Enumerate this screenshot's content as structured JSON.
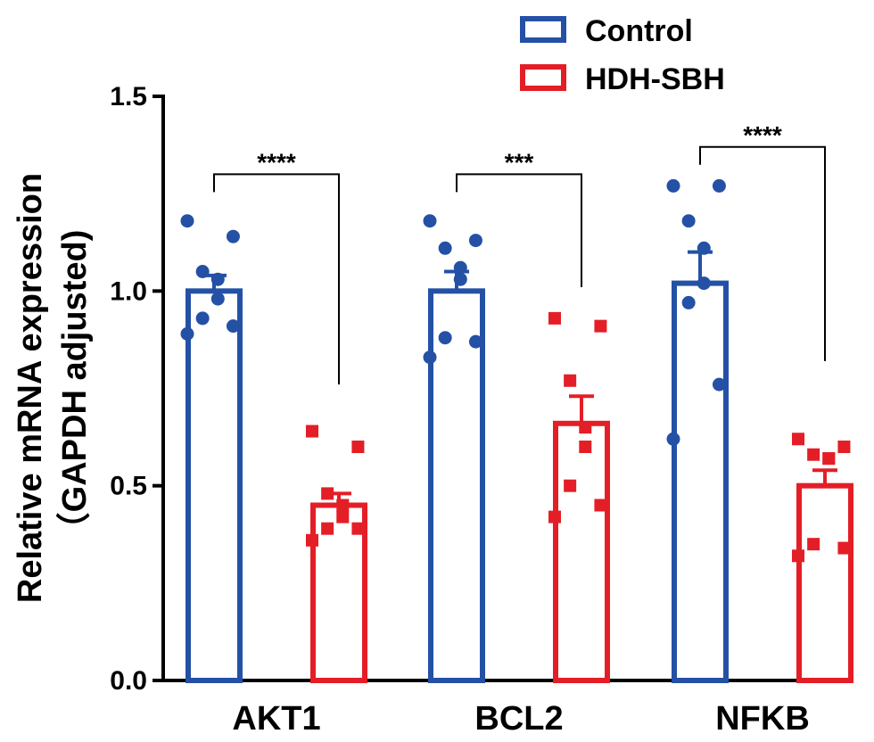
{
  "chart_data": {
    "type": "bar",
    "title": "",
    "xlabel": "",
    "ylabel": "Relative mRNA expression",
    "ylabel_line2": "（GAPDH adjusted)",
    "ylim": [
      0,
      1.5
    ],
    "yticks": [
      "0.0",
      "0.5",
      "1.0",
      "1.5"
    ],
    "ytick_values": [
      0,
      0.5,
      1.0,
      1.5
    ],
    "categories": [
      "AKT1",
      "BCL2",
      "NFKB"
    ],
    "legend_position": "top-right",
    "colors": {
      "Control": "#2451a6",
      "HDH-SBH": "#e41e26"
    },
    "series": [
      {
        "name": "Control",
        "marker": "circle",
        "values": [
          1.0,
          1.0,
          1.02
        ],
        "sem": [
          0.04,
          0.05,
          0.08
        ],
        "points": [
          [
            1.18,
            1.14,
            1.05,
            1.03,
            0.98,
            0.93,
            0.91,
            0.89
          ],
          [
            1.18,
            1.13,
            1.11,
            1.06,
            1.03,
            0.88,
            0.87,
            0.83
          ],
          [
            1.27,
            1.27,
            1.18,
            1.11,
            1.02,
            0.97,
            0.76,
            0.62
          ]
        ]
      },
      {
        "name": "HDH-SBH",
        "marker": "square",
        "values": [
          0.45,
          0.66,
          0.5
        ],
        "sem": [
          0.03,
          0.07,
          0.04
        ],
        "points": [
          [
            0.64,
            0.6,
            0.48,
            0.45,
            0.42,
            0.39,
            0.39,
            0.36
          ],
          [
            0.93,
            0.91,
            0.77,
            0.65,
            0.6,
            0.5,
            0.45,
            0.42
          ],
          [
            0.62,
            0.6,
            0.58,
            0.57,
            0.57,
            0.35,
            0.34,
            0.32
          ]
        ]
      }
    ],
    "significance": [
      {
        "category": "AKT1",
        "label": "****",
        "y": 1.3
      },
      {
        "category": "BCL2",
        "label": "***",
        "y": 1.3
      },
      {
        "category": "NFKB",
        "label": "****",
        "y": 1.37
      }
    ]
  }
}
